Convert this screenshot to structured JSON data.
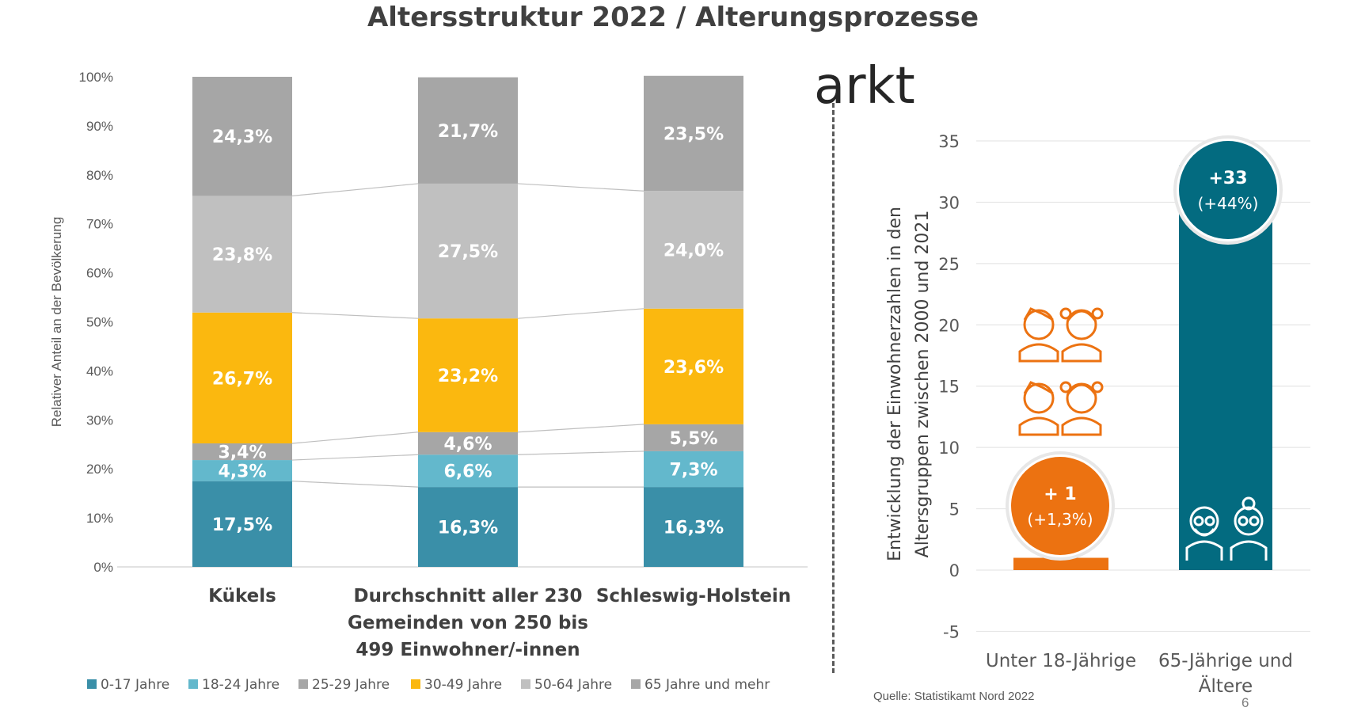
{
  "title": "Altersstruktur 2022 / Alterungsprozesse",
  "residual_heading": "arkt",
  "source": "Quelle: Statistikamt Nord 2022",
  "page_number": "6",
  "colors": {
    "age_0_17": "#3a8fa8",
    "age_18_24": "#63b8cc",
    "age_25_29": "#a6a6a6",
    "age_30_49": "#fbb80f",
    "age_50_64": "#c0c0c0",
    "age_65_plus": "#a6a6a6",
    "orange": "#ec7211",
    "teal": "#036b80"
  },
  "icons": [
    "children-icons",
    "seniors-icon"
  ],
  "chart_data": [
    {
      "type": "bar",
      "stacked": true,
      "ylabel": "Relativer Anteil an der Bevölkerung",
      "ylim": [
        0,
        100
      ],
      "yticks": [
        "0%",
        "10%",
        "20%",
        "30%",
        "40%",
        "50%",
        "60%",
        "70%",
        "80%",
        "90%",
        "100%"
      ],
      "categories": [
        [
          "Kükels"
        ],
        [
          "Durchschnitt aller 230",
          "Gemeinden von 250 bis",
          "499 Einwohner/-innen"
        ],
        [
          "Schleswig-Holstein"
        ]
      ],
      "series": [
        {
          "name": "0-17 Jahre",
          "values": [
            17.5,
            16.3,
            16.3
          ],
          "labels": [
            "17,5%",
            "16,3%",
            "16,3%"
          ],
          "color": "#3a8fa8",
          "label_color": "#ffffff"
        },
        {
          "name": "18-24 Jahre",
          "values": [
            4.3,
            6.6,
            7.3
          ],
          "labels": [
            "4,3%",
            "6,6%",
            "7,3%"
          ],
          "color": "#63b8cc",
          "label_color": "#ffffff"
        },
        {
          "name": "25-29 Jahre",
          "values": [
            3.4,
            4.6,
            5.5
          ],
          "labels": [
            "3,4%",
            "4,6%",
            "5,5%"
          ],
          "color": "#a6a6a6",
          "label_color": "#ffffff"
        },
        {
          "name": "30-49 Jahre",
          "values": [
            26.7,
            23.2,
            23.6
          ],
          "labels": [
            "26,7%",
            "23,2%",
            "23,6%"
          ],
          "color": "#fbb80f",
          "label_color": "#ffffff"
        },
        {
          "name": "50-64 Jahre",
          "values": [
            23.8,
            27.5,
            24.0
          ],
          "labels": [
            "23,8%",
            "27,5%",
            "24,0%"
          ],
          "color": "#c0c0c0",
          "label_color": "#ffffff"
        },
        {
          "name": "65 Jahre und mehr",
          "values": [
            24.3,
            21.7,
            23.5
          ],
          "labels": [
            "24,3%",
            "21,7%",
            "23,5%"
          ],
          "color": "#a6a6a6",
          "label_color": "#ffffff"
        }
      ],
      "legend_position": "bottom",
      "series_connectors": true
    },
    {
      "type": "bar",
      "ylabel": [
        "Entwicklung der Einwohnerzahlen in den",
        "Altersgruppen zwischen 2000 und 2021"
      ],
      "ylim": [
        -5,
        35
      ],
      "yticks": [
        "-5",
        "0",
        "5",
        "10",
        "15",
        "20",
        "25",
        "30",
        "35"
      ],
      "categories": [
        [
          "Unter 18-Jährige"
        ],
        [
          "65-Jährige und",
          "Ältere"
        ]
      ],
      "values": [
        1,
        33
      ],
      "value_labels": [
        "+ 1",
        "+33"
      ],
      "percent_labels": [
        "(+1,3%)",
        "(+44%)"
      ],
      "colors": [
        "#ec7211",
        "#036b80"
      ],
      "grid": true
    }
  ]
}
